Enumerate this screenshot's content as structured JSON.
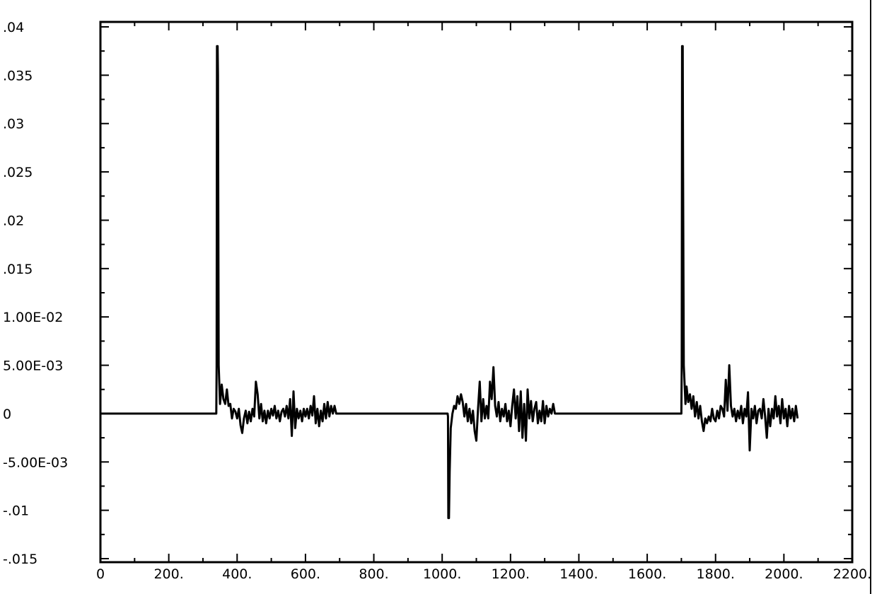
{
  "chart_data": {
    "type": "line",
    "title": "",
    "xlabel": "",
    "ylabel": "",
    "xlim": [
      0,
      2200
    ],
    "ylim": [
      -0.015,
      0.04
    ],
    "grid": false,
    "x_ticks": [
      {
        "value": 0,
        "label": "0"
      },
      {
        "value": 200,
        "label": "200."
      },
      {
        "value": 400,
        "label": "400."
      },
      {
        "value": 600,
        "label": "600."
      },
      {
        "value": 800,
        "label": "800."
      },
      {
        "value": 1000,
        "label": "1000."
      },
      {
        "value": 1200,
        "label": "1200."
      },
      {
        "value": 1400,
        "label": "1400."
      },
      {
        "value": 1600,
        "label": "1600."
      },
      {
        "value": 1800,
        "label": "1800."
      },
      {
        "value": 2000,
        "label": "2000."
      },
      {
        "value": 2200,
        "label": "2200."
      }
    ],
    "y_ticks": [
      {
        "value": 0.04,
        "label": ".04"
      },
      {
        "value": 0.035,
        "label": ".035"
      },
      {
        "value": 0.03,
        "label": ".03"
      },
      {
        "value": 0.025,
        "label": ".025"
      },
      {
        "value": 0.02,
        "label": ".02"
      },
      {
        "value": 0.015,
        "label": ".015"
      },
      {
        "value": 0.01,
        "label": "1.00E-02"
      },
      {
        "value": 0.005,
        "label": "5.00E-03"
      },
      {
        "value": 0,
        "label": "0"
      },
      {
        "value": -0.005,
        "label": "-5.00E-03"
      },
      {
        "value": -0.01,
        "label": "-.01"
      },
      {
        "value": -0.015,
        "label": "-.015"
      }
    ],
    "series": [
      {
        "points": [
          [
            0,
            0
          ],
          [
            339,
            0
          ],
          [
            340,
            0.005
          ],
          [
            341,
            0.038
          ],
          [
            343,
            0.038
          ],
          [
            344,
            0.035
          ],
          [
            346,
            0.005
          ],
          [
            350,
            0.001
          ],
          [
            355,
            0.003
          ],
          [
            360,
            0.0015
          ],
          [
            365,
            0.001
          ],
          [
            370,
            0.0025
          ],
          [
            375,
            0.0008
          ],
          [
            380,
            0.001
          ],
          [
            385,
            -0.0005
          ],
          [
            390,
            0.0005
          ],
          [
            395,
            0.0002
          ],
          [
            400,
            -0.0005
          ],
          [
            405,
            0.0005
          ],
          [
            410,
            -0.0012
          ],
          [
            415,
            -0.002
          ],
          [
            420,
            -0.0005
          ],
          [
            425,
            0.0003
          ],
          [
            430,
            -0.001
          ],
          [
            435,
            0.0002
          ],
          [
            440,
            -0.0008
          ],
          [
            445,
            0.0005
          ],
          [
            450,
            -0.0003
          ],
          [
            455,
            0.0033
          ],
          [
            460,
            0.002
          ],
          [
            465,
            -0.0005
          ],
          [
            470,
            0.001
          ],
          [
            475,
            -0.0008
          ],
          [
            480,
            0.0003
          ],
          [
            485,
            -0.001
          ],
          [
            490,
            0.0003
          ],
          [
            495,
            -0.0005
          ],
          [
            500,
            0.0005
          ],
          [
            505,
            -0.0002
          ],
          [
            510,
            0.0008
          ],
          [
            515,
            -0.0005
          ],
          [
            520,
            0.0003
          ],
          [
            525,
            -0.0008
          ],
          [
            530,
            0.0002
          ],
          [
            535,
            0.0005
          ],
          [
            540,
            -0.0003
          ],
          [
            545,
            0.0008
          ],
          [
            550,
            -0.0005
          ],
          [
            555,
            0.0015
          ],
          [
            560,
            -0.0023
          ],
          [
            565,
            0.0023
          ],
          [
            570,
            -0.0015
          ],
          [
            575,
            0.0005
          ],
          [
            580,
            -0.0005
          ],
          [
            585,
            0.0003
          ],
          [
            590,
            -0.0008
          ],
          [
            595,
            0.0005
          ],
          [
            600,
            -0.0003
          ],
          [
            605,
            0.0005
          ],
          [
            610,
            -0.0005
          ],
          [
            615,
            0.0008
          ],
          [
            620,
            -0.0002
          ],
          [
            625,
            0.0018
          ],
          [
            630,
            -0.001
          ],
          [
            635,
            0.0005
          ],
          [
            640,
            -0.0013
          ],
          [
            645,
            0.0003
          ],
          [
            650,
            -0.0008
          ],
          [
            655,
            0.001
          ],
          [
            660,
            -0.0005
          ],
          [
            665,
            0.0012
          ],
          [
            670,
            -0.0003
          ],
          [
            675,
            0.0008
          ],
          [
            680,
            0
          ],
          [
            685,
            0.0008
          ],
          [
            690,
            0
          ],
          [
            1016,
            0
          ],
          [
            1017,
            -0.0003
          ],
          [
            1018,
            -0.0108
          ],
          [
            1020,
            -0.0108
          ],
          [
            1022,
            -0.006
          ],
          [
            1025,
            -0.0015
          ],
          [
            1030,
            0
          ],
          [
            1035,
            0.0008
          ],
          [
            1040,
            0.0005
          ],
          [
            1045,
            0.0018
          ],
          [
            1050,
            0.001
          ],
          [
            1055,
            0.002
          ],
          [
            1060,
            0.0012
          ],
          [
            1065,
            -0.0003
          ],
          [
            1070,
            0.001
          ],
          [
            1075,
            -0.0008
          ],
          [
            1080,
            0.0005
          ],
          [
            1085,
            -0.001
          ],
          [
            1090,
            0.0003
          ],
          [
            1095,
            -0.0018
          ],
          [
            1100,
            -0.0028
          ],
          [
            1105,
            0.0005
          ],
          [
            1110,
            0.0033
          ],
          [
            1115,
            -0.0008
          ],
          [
            1120,
            0.0015
          ],
          [
            1125,
            -0.0005
          ],
          [
            1130,
            0.0008
          ],
          [
            1135,
            -0.0005
          ],
          [
            1140,
            0.0033
          ],
          [
            1145,
            0.0015
          ],
          [
            1150,
            0.0048
          ],
          [
            1155,
            0.0008
          ],
          [
            1160,
            -0.0003
          ],
          [
            1165,
            0.0012
          ],
          [
            1170,
            -0.0008
          ],
          [
            1175,
            0.0005
          ],
          [
            1180,
            -0.0003
          ],
          [
            1185,
            0.001
          ],
          [
            1190,
            -0.0008
          ],
          [
            1195,
            0.0003
          ],
          [
            1200,
            -0.0013
          ],
          [
            1205,
            0.0008
          ],
          [
            1210,
            0.0025
          ],
          [
            1215,
            -0.0005
          ],
          [
            1220,
            0.0018
          ],
          [
            1225,
            -0.0018
          ],
          [
            1230,
            0.0023
          ],
          [
            1235,
            -0.0025
          ],
          [
            1240,
            0.001
          ],
          [
            1245,
            -0.0028
          ],
          [
            1250,
            0.0025
          ],
          [
            1255,
            -0.0005
          ],
          [
            1260,
            0.0013
          ],
          [
            1265,
            -0.0008
          ],
          [
            1270,
            0.0005
          ],
          [
            1275,
            0.0012
          ],
          [
            1280,
            -0.001
          ],
          [
            1285,
            0.0003
          ],
          [
            1290,
            -0.0008
          ],
          [
            1295,
            0.0013
          ],
          [
            1300,
            -0.001
          ],
          [
            1305,
            0.0008
          ],
          [
            1310,
            -0.0003
          ],
          [
            1315,
            0.0005
          ],
          [
            1320,
            0
          ],
          [
            1325,
            0.001
          ],
          [
            1330,
            0
          ],
          [
            1700,
            0
          ],
          [
            1701,
            0.005
          ],
          [
            1702,
            0.038
          ],
          [
            1704,
            0.038
          ],
          [
            1705,
            0.025
          ],
          [
            1707,
            0.005
          ],
          [
            1712,
            0.001
          ],
          [
            1715,
            0.0028
          ],
          [
            1720,
            0.0012
          ],
          [
            1725,
            0.002
          ],
          [
            1730,
            0.0005
          ],
          [
            1735,
            0.0018
          ],
          [
            1740,
            -0.0003
          ],
          [
            1745,
            0.0012
          ],
          [
            1750,
            -0.0005
          ],
          [
            1755,
            0.0008
          ],
          [
            1760,
            -0.0008
          ],
          [
            1765,
            -0.0018
          ],
          [
            1770,
            -0.0005
          ],
          [
            1775,
            -0.001
          ],
          [
            1780,
            -0.0003
          ],
          [
            1785,
            -0.0008
          ],
          [
            1790,
            0.0005
          ],
          [
            1795,
            -0.0005
          ],
          [
            1800,
            -0.0008
          ],
          [
            1805,
            0.0003
          ],
          [
            1810,
            -0.0005
          ],
          [
            1815,
            0.0008
          ],
          [
            1820,
            0.0005
          ],
          [
            1825,
            -0.0003
          ],
          [
            1830,
            0.0035
          ],
          [
            1835,
            0.0003
          ],
          [
            1840,
            0.005
          ],
          [
            1845,
            0.0008
          ],
          [
            1850,
            -0.0003
          ],
          [
            1855,
            0.0005
          ],
          [
            1860,
            -0.0008
          ],
          [
            1865,
            0.0003
          ],
          [
            1870,
            -0.0005
          ],
          [
            1875,
            0.0008
          ],
          [
            1880,
            -0.001
          ],
          [
            1885,
            0.0005
          ],
          [
            1890,
            -0.0003
          ],
          [
            1895,
            0.0022
          ],
          [
            1900,
            -0.0038
          ],
          [
            1905,
            0.0005
          ],
          [
            1910,
            -0.0005
          ],
          [
            1915,
            0.0008
          ],
          [
            1920,
            -0.001
          ],
          [
            1925,
            0.0003
          ],
          [
            1930,
            0.0005
          ],
          [
            1935,
            -0.0005
          ],
          [
            1940,
            0.0015
          ],
          [
            1945,
            -0.0003
          ],
          [
            1950,
            -0.0025
          ],
          [
            1955,
            0.0005
          ],
          [
            1960,
            -0.0013
          ],
          [
            1965,
            0.0005
          ],
          [
            1970,
            -0.0005
          ],
          [
            1975,
            0.0018
          ],
          [
            1980,
            -0.0003
          ],
          [
            1985,
            0.0008
          ],
          [
            1990,
            -0.001
          ],
          [
            1995,
            0.0015
          ],
          [
            2000,
            -0.0005
          ],
          [
            2005,
            0.0005
          ],
          [
            2010,
            -0.0013
          ],
          [
            2015,
            0.0008
          ],
          [
            2020,
            -0.0005
          ],
          [
            2025,
            0.0005
          ],
          [
            2030,
            -0.0008
          ],
          [
            2035,
            0.0008
          ],
          [
            2040,
            -0.0005
          ]
        ]
      }
    ]
  }
}
